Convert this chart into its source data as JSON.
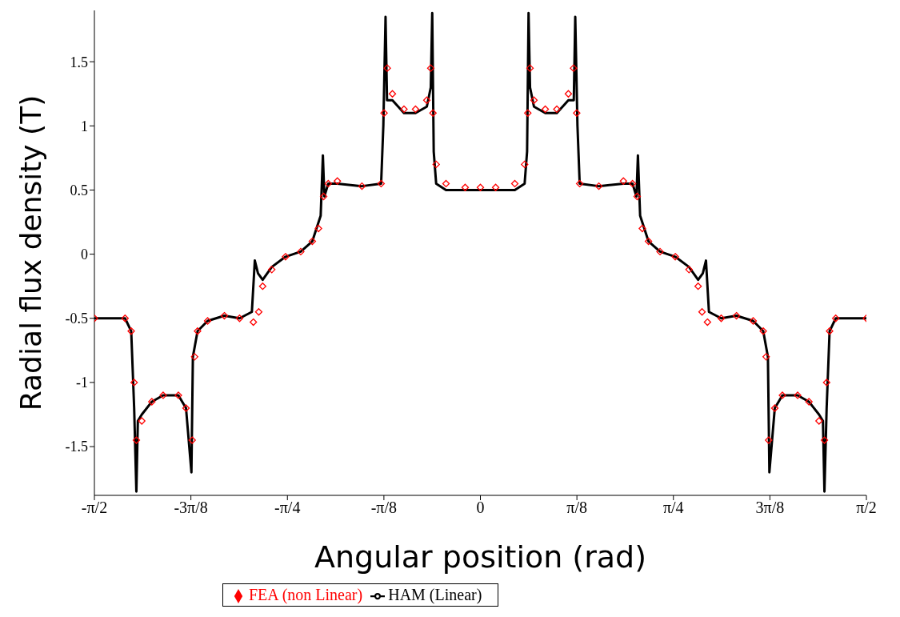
{
  "chart_data": {
    "type": "line",
    "xlabel": "Angular position (rad)",
    "ylabel": "Radial flux density (T)",
    "xlim": [
      -1.5708,
      1.5708
    ],
    "ylim": [
      -1.88,
      1.9
    ],
    "xticks": [
      {
        "value": -1.5708,
        "label": "-π/2"
      },
      {
        "value": -1.1781,
        "label": "-3π/8"
      },
      {
        "value": -0.7854,
        "label": "-π/4"
      },
      {
        "value": -0.3927,
        "label": "-π/8"
      },
      0,
      {
        "value": 0.3927,
        "label": "π/8"
      },
      {
        "value": 0.7854,
        "label": "π/4"
      },
      {
        "value": 1.1781,
        "label": "3π/8"
      },
      {
        "value": 1.5708,
        "label": "π/2"
      }
    ],
    "yticks": [
      -1.5,
      -1,
      -0.5,
      0,
      0.5,
      1,
      1.5
    ],
    "grid": false,
    "legend": "bottom",
    "series": [
      {
        "name": "HAM (Linear)",
        "color": "#000000",
        "line_style": "solid",
        "marker": "none",
        "x": [
          -1.5708,
          -1.446,
          -1.421,
          -1.409,
          -1.4,
          -1.394,
          -1.378,
          -1.337,
          -1.291,
          -1.229,
          -1.198,
          -1.176,
          -1.17,
          -1.151,
          -1.11,
          -1.042,
          -0.98,
          -0.93,
          -0.918,
          -0.905,
          -0.886,
          -0.849,
          -0.793,
          -0.731,
          -0.684,
          -0.65,
          -0.641,
          -0.635,
          -0.619,
          -0.582,
          -0.482,
          -0.404,
          -0.395,
          -0.386,
          -0.38,
          -0.358,
          -0.311,
          -0.264,
          -0.218,
          -0.202,
          -0.196,
          -0.19,
          -0.18,
          -0.14,
          -0.062,
          0,
          0.062,
          0.14,
          0.18,
          0.19,
          0.196,
          0.202,
          0.218,
          0.264,
          0.311,
          0.358,
          0.38,
          0.386,
          0.395,
          0.404,
          0.482,
          0.582,
          0.619,
          0.635,
          0.641,
          0.65,
          0.684,
          0.731,
          0.793,
          0.849,
          0.886,
          0.905,
          0.918,
          0.93,
          0.98,
          1.042,
          1.11,
          1.151,
          1.17,
          1.176,
          1.198,
          1.229,
          1.291,
          1.337,
          1.378,
          1.394,
          1.4,
          1.409,
          1.421,
          1.446,
          1.5708
        ],
        "values": [
          -0.5,
          -0.5,
          -0.6,
          -1.2,
          -1.85,
          -1.3,
          -1.25,
          -1.15,
          -1.1,
          -1.1,
          -1.2,
          -1.7,
          -0.8,
          -0.6,
          -0.52,
          -0.48,
          -0.5,
          -0.45,
          -0.05,
          -0.15,
          -0.2,
          -0.1,
          -0.02,
          0.02,
          0.1,
          0.3,
          0.77,
          0.45,
          0.55,
          0.55,
          0.53,
          0.55,
          1,
          1.85,
          1.2,
          1.2,
          1.1,
          1.1,
          1.15,
          1.3,
          1.88,
          0.8,
          0.55,
          0.5,
          0.5,
          0.5,
          0.5,
          0.5,
          0.55,
          0.8,
          1.88,
          1.3,
          1.15,
          1.1,
          1.1,
          1.2,
          1.2,
          1.85,
          1,
          0.55,
          0.53,
          0.55,
          0.55,
          0.45,
          0.77,
          0.3,
          0.1,
          0.02,
          -0.02,
          -0.1,
          -0.2,
          -0.15,
          -0.05,
          -0.45,
          -0.5,
          -0.48,
          -0.52,
          -0.6,
          -0.8,
          -1.7,
          -1.2,
          -1.1,
          -1.1,
          -1.15,
          -1.25,
          -1.3,
          -1.85,
          -1.2,
          -0.6,
          -0.5,
          -0.5
        ]
      },
      {
        "name": "FEA (non Linear)",
        "type": "scatter",
        "color": "#ff0000",
        "marker": "diamond",
        "x": [
          -1.5708,
          -1.446,
          -1.421,
          -1.409,
          -1.4,
          -1.378,
          -1.337,
          -1.291,
          -1.229,
          -1.198,
          -1.173,
          -1.163,
          -1.151,
          -1.11,
          -1.042,
          -0.98,
          -0.924,
          -0.902,
          -0.886,
          -0.849,
          -0.793,
          -0.731,
          -0.684,
          -0.659,
          -0.638,
          -0.619,
          -0.582,
          -0.482,
          -0.404,
          -0.392,
          -0.379,
          -0.358,
          -0.311,
          -0.264,
          -0.218,
          -0.202,
          -0.193,
          -0.18,
          -0.14,
          -0.062,
          0,
          0.062,
          0.14,
          0.18,
          0.193,
          0.202,
          0.218,
          0.264,
          0.311,
          0.358,
          0.379,
          0.392,
          0.404,
          0.482,
          0.582,
          0.619,
          0.638,
          0.659,
          0.684,
          0.731,
          0.793,
          0.849,
          0.886,
          0.902,
          0.924,
          0.98,
          1.042,
          1.11,
          1.151,
          1.163,
          1.173,
          1.198,
          1.229,
          1.291,
          1.337,
          1.378,
          1.4,
          1.409,
          1.421,
          1.446,
          1.5708
        ],
        "values": [
          -0.5,
          -0.5,
          -0.6,
          -1,
          -1.45,
          -1.3,
          -1.15,
          -1.1,
          -1.1,
          -1.2,
          -1.45,
          -0.8,
          -0.6,
          -0.52,
          -0.48,
          -0.5,
          -0.53,
          -0.45,
          -0.25,
          -0.12,
          -0.02,
          0.02,
          0.1,
          0.2,
          0.45,
          0.55,
          0.57,
          0.53,
          0.55,
          1.1,
          1.45,
          1.25,
          1.13,
          1.13,
          1.2,
          1.45,
          1.1,
          0.7,
          0.55,
          0.52,
          0.52,
          0.52,
          0.55,
          0.7,
          1.1,
          1.45,
          1.2,
          1.13,
          1.13,
          1.25,
          1.45,
          1.1,
          0.55,
          0.53,
          0.57,
          0.55,
          0.45,
          0.2,
          0.1,
          0.02,
          -0.02,
          -0.12,
          -0.25,
          -0.45,
          -0.53,
          -0.5,
          -0.48,
          -0.52,
          -0.6,
          -0.8,
          -1.45,
          -1.2,
          -1.1,
          -1.1,
          -1.15,
          -1.3,
          -1.45,
          -1,
          -0.6,
          -0.5,
          -0.5
        ]
      }
    ]
  }
}
